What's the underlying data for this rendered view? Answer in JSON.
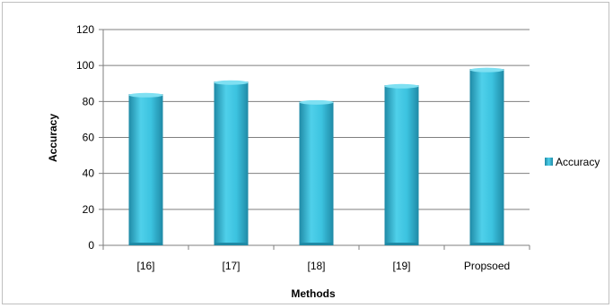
{
  "chart_data": {
    "type": "bar",
    "categories": [
      "[16]",
      "[17]",
      "[18]",
      "[19]",
      "Propsoed"
    ],
    "series": [
      {
        "name": "Accuracy",
        "values": [
          84,
          91,
          80,
          89,
          98
        ]
      }
    ],
    "title": "",
    "xlabel": "Methods",
    "ylabel": "Accuracy",
    "ylim": [
      0,
      120
    ],
    "yticks": [
      0,
      20,
      40,
      60,
      80,
      100,
      120
    ],
    "grid": true,
    "legend_position": "right",
    "colors": {
      "bar_light": "#4FD0EA",
      "bar_mid": "#2FB7D6",
      "bar_dark": "#1F8AA6",
      "grid": "#7f7f7f"
    }
  }
}
